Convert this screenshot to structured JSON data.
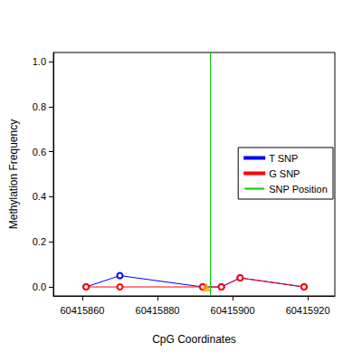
{
  "chart_data": {
    "type": "line",
    "x_label": "CpG Coordinates",
    "y_label": "Methylation Frequency",
    "x": [
      60415861,
      60415870,
      60415892,
      60415897,
      60415902,
      60415919
    ],
    "series": [
      {
        "name": "T SNP",
        "color": "#0000ff",
        "values": [
          0,
          0.05,
          0,
          0,
          0.04,
          0
        ],
        "marker": "circle",
        "line_style": "solid"
      },
      {
        "name": "G SNP",
        "color": "#ff0000",
        "values": [
          0,
          0,
          0,
          0,
          0.04,
          0
        ],
        "marker": "circle",
        "line_style": "solid"
      }
    ],
    "snp_position": {
      "name": "SNP Position",
      "x": 60415894,
      "color": "#00cc00"
    },
    "snp_cpg": {
      "x": [
        60415893
      ],
      "values": [
        0
      ],
      "color": "#ffa500",
      "marker": "triangle"
    },
    "xlim": [
      60415852.3,
      60415927.2
    ],
    "xticks": [
      60415860,
      60415880,
      60415900,
      60415920
    ],
    "ylim": [
      -0.04,
      1.04
    ],
    "yticks": [
      {
        "value": 0,
        "label": "0.0"
      },
      {
        "value": 0.2,
        "label": "0.2"
      },
      {
        "value": 0.4,
        "label": "0.4"
      },
      {
        "value": 0.6,
        "label": "0.6"
      },
      {
        "value": 0.8,
        "label": "0.8"
      },
      {
        "value": 1,
        "label": "1.0"
      }
    ],
    "legend": "right",
    "grid": false
  }
}
